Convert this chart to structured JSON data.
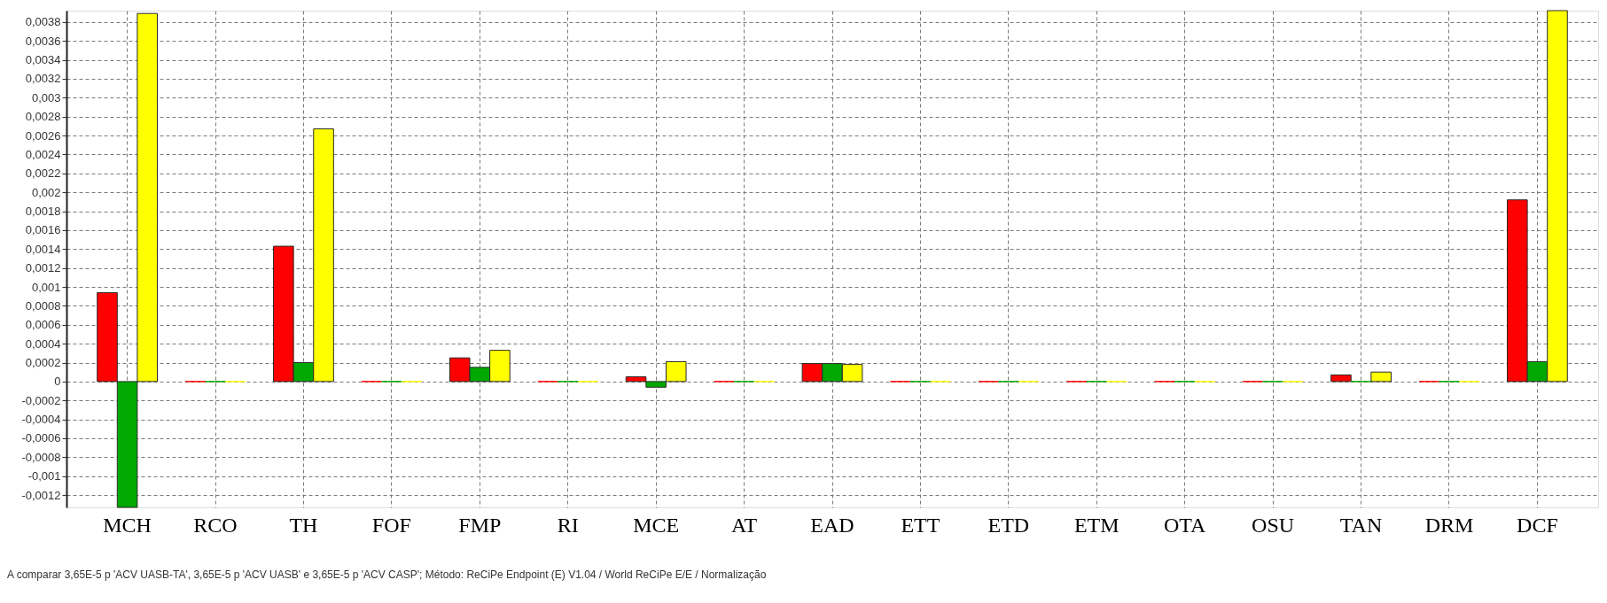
{
  "chart_data": {
    "type": "bar",
    "categories": [
      "MCH",
      "RCO",
      "TH",
      "FOF",
      "FMP",
      "RI",
      "MCE",
      "AT",
      "EAD",
      "ETT",
      "ETD",
      "ETM",
      "OTA",
      "OSU",
      "TAN",
      "DRM",
      "DCF"
    ],
    "series": [
      {
        "color": "#ff0000",
        "values": [
          0.00094,
          0,
          0.00143,
          0,
          0.00025,
          0,
          5e-05,
          0,
          0.00019,
          0,
          0,
          0,
          0,
          0,
          7e-05,
          0,
          0.00192
        ]
      },
      {
        "color": "#00a800",
        "values": [
          -0.00133,
          0,
          0.0002,
          0,
          0.00015,
          0,
          -6e-05,
          0,
          0.00019,
          0,
          0,
          0,
          0,
          0,
          0,
          0,
          0.00021
        ]
      },
      {
        "color": "#ffff00",
        "values": [
          0.00389,
          0,
          0.00267,
          0,
          0.00033,
          0,
          0.00021,
          0,
          0.00018,
          0,
          0,
          0,
          0,
          0,
          0.0001,
          0,
          0.00392
        ]
      }
    ],
    "ylim": [
      -0.00133,
      0.00392
    ],
    "yticks": [
      {
        "value": -0.0012,
        "label": "-0,0012"
      },
      {
        "value": -0.001,
        "label": "-0,001"
      },
      {
        "value": -0.0008,
        "label": "-0,0008"
      },
      {
        "value": -0.0006,
        "label": "-0,0006"
      },
      {
        "value": -0.0004,
        "label": "-0,0004"
      },
      {
        "value": -0.0002,
        "label": "-0,0002"
      },
      0,
      {
        "value": 0.0002,
        "label": "0,0002"
      },
      {
        "value": 0.0004,
        "label": "0,0004"
      },
      {
        "value": 0.0006,
        "label": "0,0006"
      },
      {
        "value": 0.0008,
        "label": "0,0008"
      },
      {
        "value": 0.001,
        "label": "0,001"
      },
      {
        "value": 0.0012,
        "label": "0,0012"
      },
      {
        "value": 0.0014,
        "label": "0,0014"
      },
      {
        "value": 0.0016,
        "label": "0,0016"
      },
      {
        "value": 0.0018,
        "label": "0,0018"
      },
      {
        "value": 0.002,
        "label": "0,002"
      },
      {
        "value": 0.0022,
        "label": "0,0022"
      },
      {
        "value": 0.0024,
        "label": "0,0024"
      },
      {
        "value": 0.0026,
        "label": "0,0026"
      },
      {
        "value": 0.0028,
        "label": "0,0028"
      },
      {
        "value": 0.003,
        "label": "0,003"
      },
      {
        "value": 0.0032,
        "label": "0,0032"
      },
      {
        "value": 0.0034,
        "label": "0,0034"
      },
      {
        "value": 0.0036,
        "label": "0,0036"
      },
      {
        "value": 0.0038,
        "label": "0,0038"
      }
    ],
    "grid": true,
    "annotations": [
      "A comparar 3,65E-5 p 'ACV UASB-TA', 3,65E-5 p 'ACV UASB' e 3,65E-5 p 'ACV CASP';  Método: ReCiPe Endpoint (E) V1.04 /  World ReCiPe E/E / Normalização"
    ]
  }
}
